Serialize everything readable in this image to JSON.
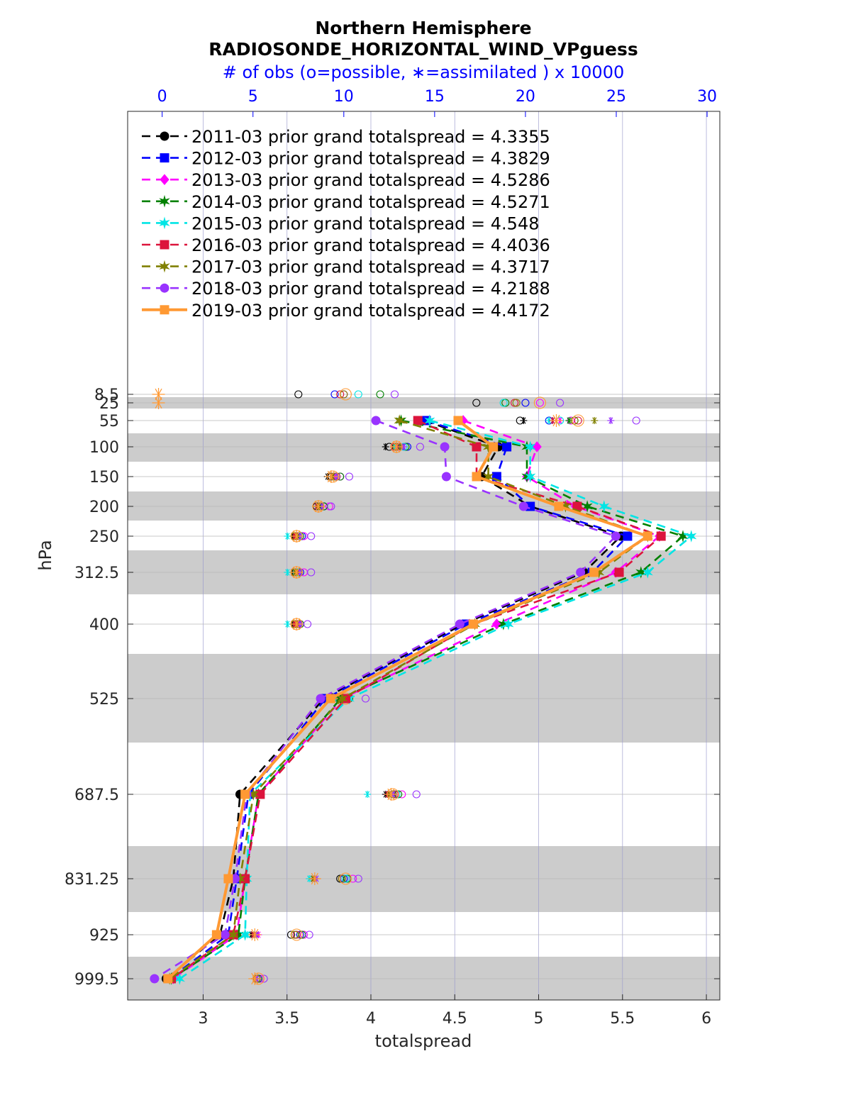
{
  "chart_data": {
    "type": "line",
    "title": "Northern Hemisphere",
    "subtitle": "RADIOSONDE_HORIZONTAL_WIND_VPguess",
    "top_axis_label": "# of obs (o=possible, ∗=assimilated ) x 10000",
    "xlabel": "totalspread",
    "ylabel": "hPa",
    "xlim": [
      2.55,
      6.08
    ],
    "top_xlim": [
      -1.9,
      30.7
    ],
    "x_ticks": [
      3,
      3.5,
      4,
      4.5,
      5,
      5.5,
      6
    ],
    "x_tick_labels": [
      "3",
      "3.5",
      "4",
      "4.5",
      "5",
      "5.5",
      "6"
    ],
    "top_ticks": [
      0,
      5,
      10,
      15,
      20,
      25,
      30
    ],
    "top_tick_labels": [
      "0",
      "5",
      "10",
      "15",
      "20",
      "25",
      "30"
    ],
    "levels": [
      8.5,
      25,
      55,
      100,
      150,
      200,
      250,
      312.5,
      400,
      525,
      687.5,
      831.25,
      925,
      999.5
    ],
    "level_labels": [
      "8.5",
      "25",
      "55",
      "100",
      "150",
      "200",
      "250",
      "312.5",
      "400",
      "525",
      "687.5",
      "831.25",
      "925",
      "999.5"
    ],
    "grid": true,
    "legend_position": "top-left",
    "series": [
      {
        "name": "2011-03 prior grand totalspread = 4.3355",
        "color": "#000000",
        "marker": "circle",
        "style": "dashed",
        "values": [
          null,
          null,
          4.32,
          4.76,
          4.66,
          4.95,
          5.49,
          5.27,
          4.55,
          3.72,
          3.22,
          3.18,
          3.1,
          2.78
        ]
      },
      {
        "name": "2012-03 prior grand totalspread = 4.3829",
        "color": "#0000ff",
        "marker": "square",
        "style": "dashed",
        "values": [
          null,
          null,
          4.33,
          4.81,
          4.75,
          4.95,
          5.53,
          5.32,
          4.57,
          3.73,
          3.27,
          3.2,
          3.15,
          2.8
        ]
      },
      {
        "name": "2013-03 prior grand totalspread = 4.5286",
        "color": "#ff00ff",
        "marker": "diamond",
        "style": "dashed",
        "values": [
          null,
          null,
          4.55,
          4.99,
          4.93,
          5.22,
          5.72,
          5.46,
          4.75,
          3.83,
          3.33,
          3.25,
          3.2,
          2.82
        ]
      },
      {
        "name": "2014-03 prior grand totalspread = 4.5271",
        "color": "#008000",
        "marker": "hexagram",
        "style": "dashed",
        "values": [
          null,
          null,
          4.18,
          4.93,
          4.93,
          5.29,
          5.86,
          5.61,
          4.79,
          3.82,
          3.33,
          3.25,
          3.21,
          2.81
        ]
      },
      {
        "name": "2015-03 prior grand totalspread = 4.548",
        "color": "#00e5e5",
        "marker": "hexagram",
        "style": "dashed",
        "values": [
          null,
          null,
          4.35,
          4.95,
          4.95,
          5.39,
          5.91,
          5.65,
          4.82,
          3.87,
          3.28,
          3.26,
          3.25,
          2.86
        ]
      },
      {
        "name": "2016-03 prior grand totalspread = 4.4036",
        "color": "#dc143c",
        "marker": "square",
        "style": "dashed",
        "values": [
          null,
          null,
          4.28,
          4.63,
          4.63,
          5.23,
          5.73,
          5.48,
          4.61,
          3.85,
          3.34,
          3.25,
          3.18,
          2.81
        ]
      },
      {
        "name": "2017-03 prior grand totalspread = 4.3717",
        "color": "#808000",
        "marker": "hexagram",
        "style": "dashed",
        "values": [
          null,
          null,
          4.17,
          4.7,
          4.7,
          5.16,
          5.65,
          5.36,
          4.62,
          3.83,
          3.3,
          3.22,
          3.18,
          2.8
        ]
      },
      {
        "name": "2018-03 prior grand totalspread = 4.2188",
        "color": "#9933ff",
        "marker": "circle",
        "style": "dashed",
        "values": [
          null,
          null,
          4.03,
          4.44,
          4.45,
          4.91,
          5.46,
          5.25,
          4.53,
          3.7,
          3.26,
          3.19,
          3.13,
          2.71
        ]
      },
      {
        "name": "2019-03 prior grand totalspread = 4.4172",
        "color": "#ff9933",
        "marker": "square",
        "style": "solid",
        "values": [
          null,
          null,
          4.52,
          4.73,
          4.63,
          5.12,
          5.65,
          5.33,
          4.61,
          3.76,
          3.25,
          3.15,
          3.08,
          2.79
        ]
      }
    ],
    "obs_possible": {
      "2011-03": [
        7.5,
        17.3,
        19.7,
        12.5,
        9.3,
        8.5,
        7.3,
        7.3,
        7.3,
        9.8,
        12.7,
        9.8,
        7.1,
        5.3
      ],
      "2012-03": [
        9.5,
        20.0,
        21.3,
        13.5,
        9.6,
        8.9,
        7.7,
        7.6,
        7.5,
        9.9,
        12.8,
        10.0,
        7.6,
        5.3
      ],
      "2013-03": [
        10.0,
        20.8,
        22.5,
        13.0,
        9.8,
        9.2,
        7.8,
        7.8,
        7.6,
        10.3,
        13.2,
        10.5,
        7.8,
        5.4
      ],
      "2014-03": [
        12.0,
        18.9,
        22.7,
        13.4,
        9.8,
        8.9,
        7.6,
        7.5,
        7.6,
        10.3,
        13.0,
        10.2,
        7.7,
        5.3
      ],
      "2015-03": [
        10.8,
        18.8,
        21.9,
        13.3,
        9.6,
        8.7,
        7.5,
        7.4,
        7.4,
        10.2,
        12.9,
        10.1,
        7.3,
        5.2
      ],
      "2016-03": [
        9.8,
        19.4,
        22.9,
        12.8,
        9.6,
        8.7,
        7.4,
        7.3,
        7.4,
        10.0,
        12.8,
        9.9,
        7.4,
        5.2
      ],
      "2017-03": [
        10.0,
        19.5,
        22.7,
        12.9,
        9.5,
        8.7,
        7.3,
        7.3,
        7.3,
        9.8,
        12.7,
        9.9,
        7.3,
        5.2
      ],
      "2018-03": [
        12.8,
        21.9,
        26.1,
        14.2,
        10.3,
        9.3,
        8.2,
        8.2,
        8.0,
        11.2,
        14.0,
        10.8,
        8.1,
        5.6
      ],
      "2019-03": [
        10.1,
        20.8,
        22.9,
        12.9,
        9.4,
        8.6,
        7.4,
        7.4,
        7.4,
        10.1,
        12.7,
        10.1,
        7.4,
        5.3
      ]
    },
    "obs_assimilated": {
      "2011-03": [
        null,
        null,
        19.9,
        12.3,
        9.1,
        8.5,
        7.2,
        7.2,
        7.2,
        9.6,
        12.3,
        8.3,
        4.9,
        5.2
      ],
      "2012-03": [
        null,
        null,
        21.5,
        13.0,
        9.4,
        8.7,
        7.5,
        7.5,
        7.5,
        9.8,
        12.6,
        8.4,
        5.1,
        5.2
      ],
      "2013-03": [
        null,
        null,
        21.9,
        13.1,
        9.5,
        8.7,
        7.5,
        7.5,
        7.5,
        9.9,
        12.8,
        8.4,
        5.3,
        5.2
      ],
      "2014-03": [
        null,
        null,
        22.4,
        13.1,
        9.4,
        8.7,
        7.5,
        7.4,
        7.4,
        9.7,
        12.6,
        8.4,
        5.2,
        5.1
      ],
      "2015-03": [
        null,
        null,
        21.3,
        12.8,
        9.3,
        8.5,
        6.9,
        6.9,
        6.9,
        9.6,
        11.3,
        8.1,
        4.7,
        5.1
      ],
      "2016-03": [
        null,
        null,
        21.5,
        12.9,
        9.3,
        8.5,
        7.3,
        7.3,
        7.3,
        9.7,
        12.4,
        8.3,
        5.0,
        5.1
      ],
      "2017-03": [
        null,
        null,
        23.8,
        13.1,
        9.4,
        8.6,
        7.4,
        7.3,
        7.4,
        9.8,
        12.5,
        8.3,
        5.1,
        5.2
      ],
      "2018-03": [
        null,
        null,
        24.7,
        13.3,
        9.6,
        8.8,
        7.6,
        7.6,
        7.6,
        10.0,
        12.7,
        8.5,
        5.2,
        5.2
      ],
      "2019-03": [
        -0.2,
        -0.2,
        21.7,
        12.9,
        9.3,
        8.6,
        7.4,
        7.4,
        7.4,
        9.8,
        12.6,
        8.4,
        5.1,
        5.1
      ]
    }
  }
}
